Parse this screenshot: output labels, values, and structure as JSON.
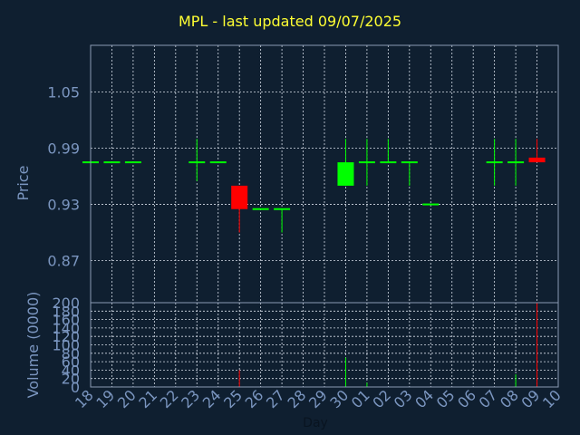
{
  "title": "MPL - last updated 09/07/2025",
  "chart_data": [
    {
      "type": "candlestick",
      "ylabel": "Price",
      "ylim": [
        0.825,
        1.1
      ],
      "yticks": [
        "1.05",
        "0.99",
        "0.93",
        "0.87"
      ],
      "grid": true,
      "colors": {
        "up": "#00ff00",
        "down": "#ff0000"
      },
      "candles": [
        {
          "day": "18",
          "open": 0.975,
          "high": 0.975,
          "low": 0.975,
          "close": 0.975
        },
        {
          "day": "19",
          "open": 0.975,
          "high": 0.975,
          "low": 0.975,
          "close": 0.975
        },
        {
          "day": "20",
          "open": 0.975,
          "high": 0.975,
          "low": 0.975,
          "close": 0.975
        },
        {
          "day": "23",
          "open": 0.975,
          "high": 1.0,
          "low": 0.955,
          "close": 0.975
        },
        {
          "day": "24",
          "open": 0.975,
          "high": 0.975,
          "low": 0.975,
          "close": 0.975
        },
        {
          "day": "25",
          "open": 0.95,
          "high": 0.95,
          "low": 0.9,
          "close": 0.925
        },
        {
          "day": "26",
          "open": 0.925,
          "high": 0.925,
          "low": 0.925,
          "close": 0.925
        },
        {
          "day": "27",
          "open": 0.925,
          "high": 0.925,
          "low": 0.9,
          "close": 0.925
        },
        {
          "day": "30",
          "open": 0.95,
          "high": 1.0,
          "low": 0.95,
          "close": 0.975
        },
        {
          "day": "01",
          "open": 0.975,
          "high": 1.0,
          "low": 0.95,
          "close": 0.975
        },
        {
          "day": "02",
          "open": 0.975,
          "high": 1.0,
          "low": 0.975,
          "close": 0.975
        },
        {
          "day": "03",
          "open": 0.975,
          "high": 0.975,
          "low": 0.95,
          "close": 0.975
        },
        {
          "day": "04",
          "open": 0.93,
          "high": 0.93,
          "low": 0.93,
          "close": 0.93
        },
        {
          "day": "07",
          "open": 0.975,
          "high": 1.0,
          "low": 0.95,
          "close": 0.975
        },
        {
          "day": "08",
          "open": 0.975,
          "high": 1.0,
          "low": 0.95,
          "close": 0.975
        },
        {
          "day": "09",
          "open": 0.98,
          "high": 1.0,
          "low": 0.975,
          "close": 0.975
        }
      ]
    },
    {
      "type": "bar",
      "ylabel": "Volume (0000)",
      "xlabel": "Day",
      "ylim": [
        0,
        200
      ],
      "yticks": [
        "200",
        "180",
        "160",
        "140",
        "120",
        "100",
        "80",
        "60",
        "40",
        "20",
        "0"
      ],
      "categories": [
        "18",
        "19",
        "20",
        "21",
        "22",
        "23",
        "24",
        "25",
        "26",
        "27",
        "28",
        "29",
        "30",
        "01",
        "02",
        "03",
        "04",
        "05",
        "06",
        "07",
        "08",
        "09",
        "10"
      ],
      "volumes": [
        {
          "day": "25",
          "value": 40,
          "dir": "down"
        },
        {
          "day": "30",
          "value": 70,
          "dir": "up"
        },
        {
          "day": "01",
          "value": 10,
          "dir": "up"
        },
        {
          "day": "08",
          "value": 30,
          "dir": "up"
        },
        {
          "day": "09",
          "value": 200,
          "dir": "down"
        }
      ]
    }
  ]
}
